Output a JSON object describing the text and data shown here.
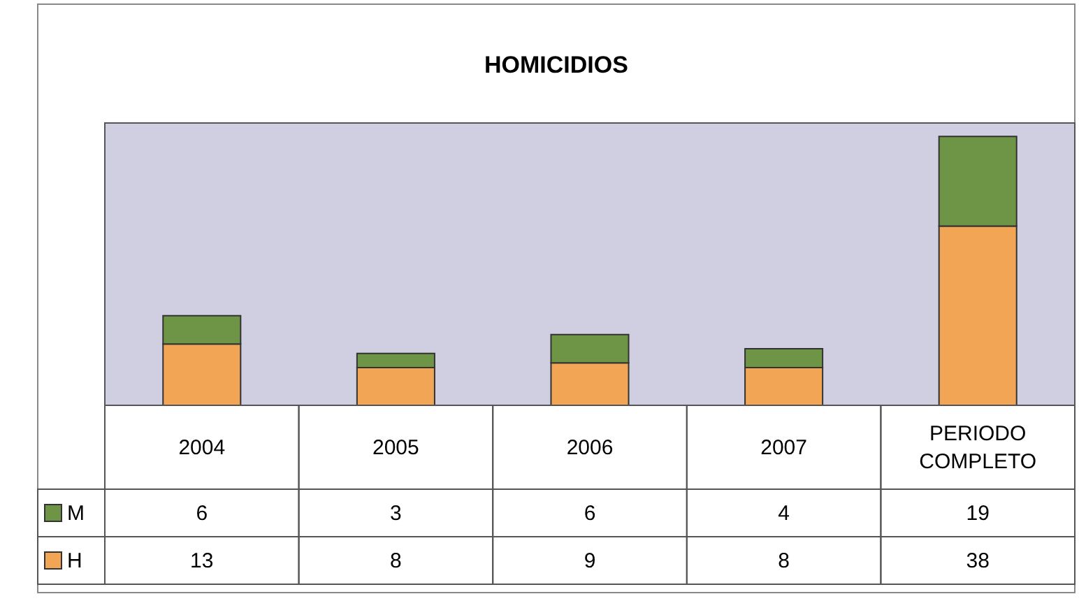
{
  "chart_data": {
    "type": "bar",
    "title": "HOMICIDIOS",
    "stacked": true,
    "data_labels": true,
    "legend": "left",
    "categories": [
      "2004",
      "2005",
      "2006",
      "2007",
      "PERIODO COMPLETO"
    ],
    "series": [
      {
        "name": "H",
        "color": "#f2a655",
        "values": [
          13,
          8,
          9,
          8,
          38
        ]
      },
      {
        "name": "M",
        "color": "#6e9445",
        "values": [
          6,
          3,
          6,
          4,
          19
        ]
      }
    ]
  }
}
